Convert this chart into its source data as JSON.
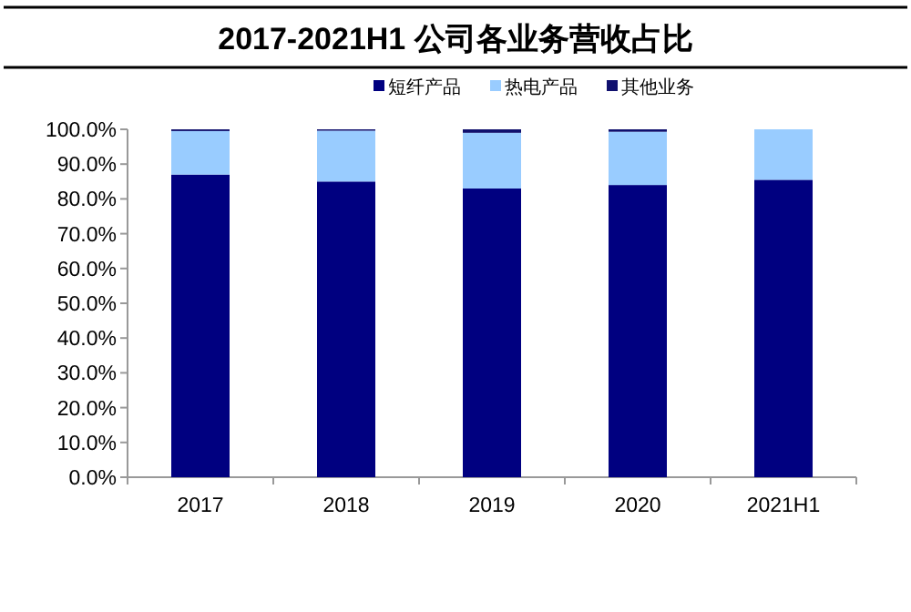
{
  "chart_data": {
    "type": "bar",
    "title": "2017-2021H1 公司各业务营收占比",
    "categories": [
      "2017",
      "2018",
      "2019",
      "2020",
      "2021H1"
    ],
    "stacked": true,
    "legend": "top",
    "grid": false,
    "series": [
      {
        "name": "短纤产品",
        "color": "#000080",
        "values": [
          87,
          85,
          83,
          84,
          85.5
        ]
      },
      {
        "name": "热电产品",
        "color": "#99ccff",
        "values": [
          12.5,
          14.6,
          16,
          15.3,
          14.5
        ]
      },
      {
        "name": "其他业务",
        "color": "#10106e",
        "values": [
          0.5,
          0.4,
          1,
          0.7,
          0
        ]
      }
    ],
    "ylim": [
      0,
      100
    ],
    "yticks": [
      {
        "value": 0,
        "label": "0.0%"
      },
      {
        "value": 10,
        "label": "10.0%"
      },
      {
        "value": 20,
        "label": "20.0%"
      },
      {
        "value": 30,
        "label": "30.0%"
      },
      {
        "value": 40,
        "label": "40.0%"
      },
      {
        "value": 50,
        "label": "50.0%"
      },
      {
        "value": 60,
        "label": "60.0%"
      },
      {
        "value": 70,
        "label": "70.0%"
      },
      {
        "value": 80,
        "label": "80.0%"
      },
      {
        "value": 90,
        "label": "90.0%"
      },
      {
        "value": 100,
        "label": "100.0%"
      }
    ]
  }
}
